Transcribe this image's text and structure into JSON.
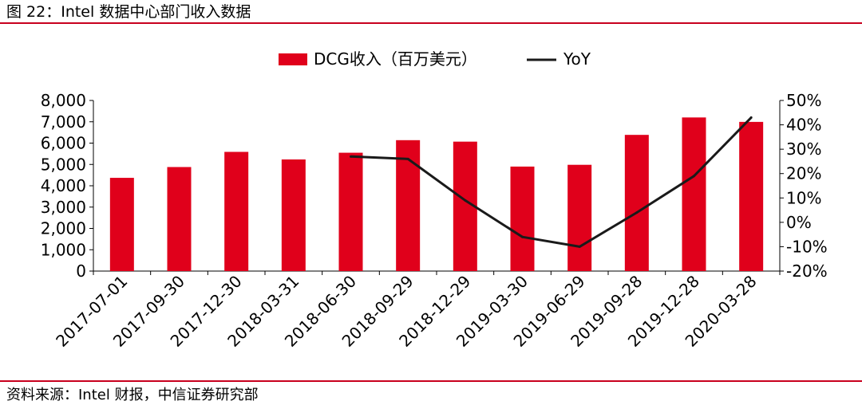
{
  "figure": {
    "title": "图 22：Intel 数据中心部门收入数据",
    "source": "资料来源：Intel 财报，中信证券研究部"
  },
  "colors": {
    "accent": "#c8001e",
    "bar": "#e0001b",
    "line": "#1a1a1a"
  },
  "chart_data": {
    "type": "bar",
    "categories": [
      "2017-07-01",
      "2017-09-30",
      "2017-12-30",
      "2018-03-31",
      "2018-06-30",
      "2018-09-29",
      "2018-12-29",
      "2019-03-30",
      "2019-06-29",
      "2019-09-28",
      "2019-12-28",
      "2020-03-28"
    ],
    "series": [
      {
        "name": "DCG收入（百万美元）",
        "type": "bar",
        "axis": "left",
        "values": [
          4372,
          4878,
          5589,
          5234,
          5549,
          6138,
          6069,
          4900,
          4983,
          6386,
          7203,
          6995
        ]
      },
      {
        "name": "YoY",
        "type": "line",
        "axis": "right",
        "values": [
          null,
          null,
          null,
          null,
          27,
          26,
          9,
          -6,
          -10,
          4,
          19,
          43
        ]
      }
    ],
    "y_left": {
      "lim": [
        0,
        8000
      ],
      "ticks": [
        "0",
        "1,000",
        "2,000",
        "3,000",
        "4,000",
        "5,000",
        "6,000",
        "7,000",
        "8,000"
      ]
    },
    "y_right": {
      "lim": [
        -20,
        50
      ],
      "ticks": [
        "-20%",
        "-10%",
        "0%",
        "10%",
        "20%",
        "30%",
        "40%",
        "50%"
      ]
    },
    "legend_position": "top-center",
    "grid": false
  }
}
